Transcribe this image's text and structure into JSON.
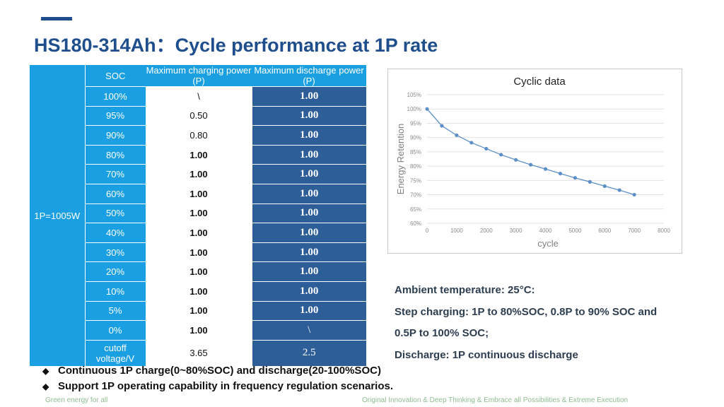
{
  "slide": {
    "title": "HS180-314Ah：Cycle performance at 1P rate",
    "accent_color": "#1f4e8c"
  },
  "table": {
    "row_header": "1P=1005W",
    "columns": [
      "SOC",
      "Maximum charging power (P)",
      "Maximum discharge power (P)"
    ],
    "rows": [
      {
        "soc": "100%",
        "charge": "\\",
        "discharge": "1.00"
      },
      {
        "soc": "95%",
        "charge": "0.50",
        "discharge": "1.00"
      },
      {
        "soc": "90%",
        "charge": "0.80",
        "discharge": "1.00"
      },
      {
        "soc": "80%",
        "charge": "1.00",
        "discharge": "1.00"
      },
      {
        "soc": "70%",
        "charge": "1.00",
        "discharge": "1.00"
      },
      {
        "soc": "60%",
        "charge": "1.00",
        "discharge": "1.00"
      },
      {
        "soc": "50%",
        "charge": "1.00",
        "discharge": "1.00"
      },
      {
        "soc": "40%",
        "charge": "1.00",
        "discharge": "1.00"
      },
      {
        "soc": "30%",
        "charge": "1.00",
        "discharge": "1.00"
      },
      {
        "soc": "20%",
        "charge": "1.00",
        "discharge": "1.00"
      },
      {
        "soc": "10%",
        "charge": "1.00",
        "discharge": "1.00"
      },
      {
        "soc": "5%",
        "charge": "1.00",
        "discharge": "1.00"
      },
      {
        "soc": "0%",
        "charge": "1.00",
        "discharge": "\\"
      },
      {
        "soc": "cutoff voltage/V",
        "charge": "3.65",
        "discharge": "2.5"
      }
    ]
  },
  "chart_data": {
    "type": "line",
    "title": "Cyclic data",
    "xlabel": "cycle",
    "ylabel": "Energy Retention",
    "xlim": [
      0,
      8000
    ],
    "ylim": [
      60,
      105
    ],
    "x_ticks": [
      "0",
      "1000",
      "2000",
      "3000",
      "4000",
      "5000",
      "6000",
      "7000",
      "8000"
    ],
    "y_ticks": [
      "60%",
      "65%",
      "70%",
      "75%",
      "80%",
      "85%",
      "90%",
      "95%",
      "100%",
      "105%"
    ],
    "grid": true,
    "series": [
      {
        "name": "Energy Retention",
        "x": [
          0,
          500,
          1000,
          1500,
          2000,
          2500,
          3000,
          3500,
          4000,
          4500,
          5000,
          5500,
          6000,
          6500,
          7000
        ],
        "y": [
          100,
          94.1,
          90.8,
          88.2,
          86.1,
          84.0,
          82.2,
          80.5,
          79.0,
          77.4,
          75.9,
          74.5,
          73.0,
          71.6,
          70.0
        ]
      }
    ],
    "line_color": "#5b8fc7"
  },
  "notes": {
    "line1": "Ambient temperature: 25°C:",
    "line2": "Step charging: 1P to 80%SOC, 0.8P to 90% SOC and",
    "line3": "0.5P to 100% SOC;",
    "line4": "Discharge: 1P continuous discharge"
  },
  "bullets": {
    "marker": "◆",
    "item1": "Continuous 1P charge(0~80%SOC) and discharge(20-100%SOC)",
    "item2": "Support 1P operating capability in frequency regulation scenarios."
  },
  "footer": {
    "left": "Green energy for all",
    "right": "Original Innovation & Deep Thinking & Embrace all Possibilities & Extreme Execution"
  }
}
